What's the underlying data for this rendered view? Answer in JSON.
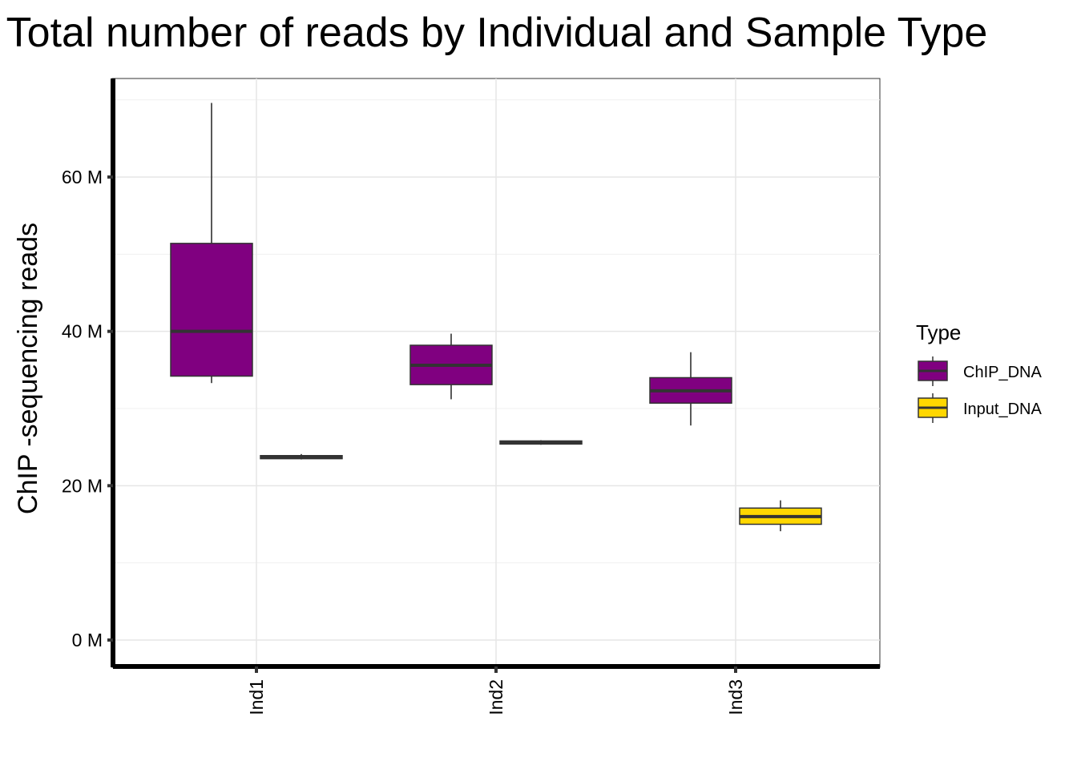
{
  "chart_data": {
    "type": "box",
    "title": "Total number of reads by Individual and Sample Type",
    "xlabel": "",
    "ylabel": "ChIP -sequencing reads",
    "categories": [
      "Ind1",
      "Ind2",
      "Ind3"
    ],
    "ylim": [
      -3500000,
      73000000
    ],
    "yticks": [
      0,
      20000000,
      40000000,
      60000000
    ],
    "ytick_labels": [
      "0 M",
      "20 M",
      "40 M",
      "60 M"
    ],
    "grid": true,
    "legend": {
      "title": "Type",
      "position": "right"
    },
    "series": [
      {
        "name": "ChIP_DNA",
        "color": "#800080",
        "boxes": [
          {
            "category": "Ind1",
            "min": 33300000,
            "q1": 34200000,
            "median": 40000000,
            "q3": 51400000,
            "max": 69600000
          },
          {
            "category": "Ind2",
            "min": 31200000,
            "q1": 33100000,
            "median": 35600000,
            "q3": 38200000,
            "max": 39700000
          },
          {
            "category": "Ind3",
            "min": 27800000,
            "q1": 30700000,
            "median": 32300000,
            "q3": 34000000,
            "max": 37300000
          }
        ]
      },
      {
        "name": "Input_DNA",
        "color": "#FFD700",
        "boxes": [
          {
            "category": "Ind1",
            "min": 23400000,
            "q1": 23500000,
            "median": 23700000,
            "q3": 23900000,
            "max": 24100000
          },
          {
            "category": "Ind2",
            "min": 25300000,
            "q1": 25400000,
            "median": 25600000,
            "q3": 25800000,
            "max": 25900000
          },
          {
            "category": "Ind3",
            "min": 14100000,
            "q1": 15000000,
            "median": 16000000,
            "q3": 17100000,
            "max": 18100000
          }
        ]
      }
    ]
  }
}
